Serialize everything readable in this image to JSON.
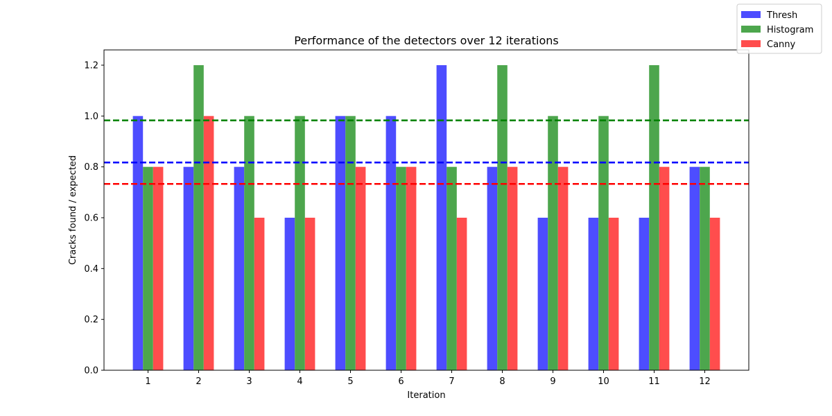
{
  "chart_data": {
    "type": "bar",
    "title": "Performance of the detectors over 12 iterations",
    "xlabel": "Iteration",
    "ylabel": "Cracks found / expected",
    "categories": [
      "1",
      "2",
      "3",
      "4",
      "5",
      "6",
      "7",
      "8",
      "9",
      "10",
      "11",
      "12"
    ],
    "series": [
      {
        "name": "Thresh",
        "color": "#4d4dff",
        "values": [
          1.0,
          0.8,
          0.8,
          0.6,
          1.0,
          1.0,
          1.2,
          0.8,
          0.6,
          0.6,
          0.6,
          0.8
        ]
      },
      {
        "name": "Histogram",
        "color": "#4da64d",
        "values": [
          0.8,
          1.2,
          1.0,
          1.0,
          1.0,
          0.8,
          0.8,
          1.2,
          1.0,
          1.0,
          1.2,
          0.8
        ]
      },
      {
        "name": "Canny",
        "color": "#ff4d4d",
        "values": [
          0.8,
          1.0,
          0.6,
          0.6,
          0.8,
          0.8,
          0.6,
          0.8,
          0.8,
          0.6,
          0.8,
          0.6
        ]
      }
    ],
    "reference_lines": [
      {
        "series": "Thresh",
        "value": 0.817,
        "color": "#0000ff",
        "style": "dashed"
      },
      {
        "series": "Histogram",
        "value": 0.983,
        "color": "#008000",
        "style": "dashed"
      },
      {
        "series": "Canny",
        "value": 0.733,
        "color": "#ff0000",
        "style": "dashed"
      }
    ],
    "ylim": [
      0,
      1.26
    ],
    "yticks": [
      "0.0",
      "0.2",
      "0.4",
      "0.6",
      "0.8",
      "1.0",
      "1.2"
    ],
    "grid": false,
    "legend_position": "top-right"
  }
}
